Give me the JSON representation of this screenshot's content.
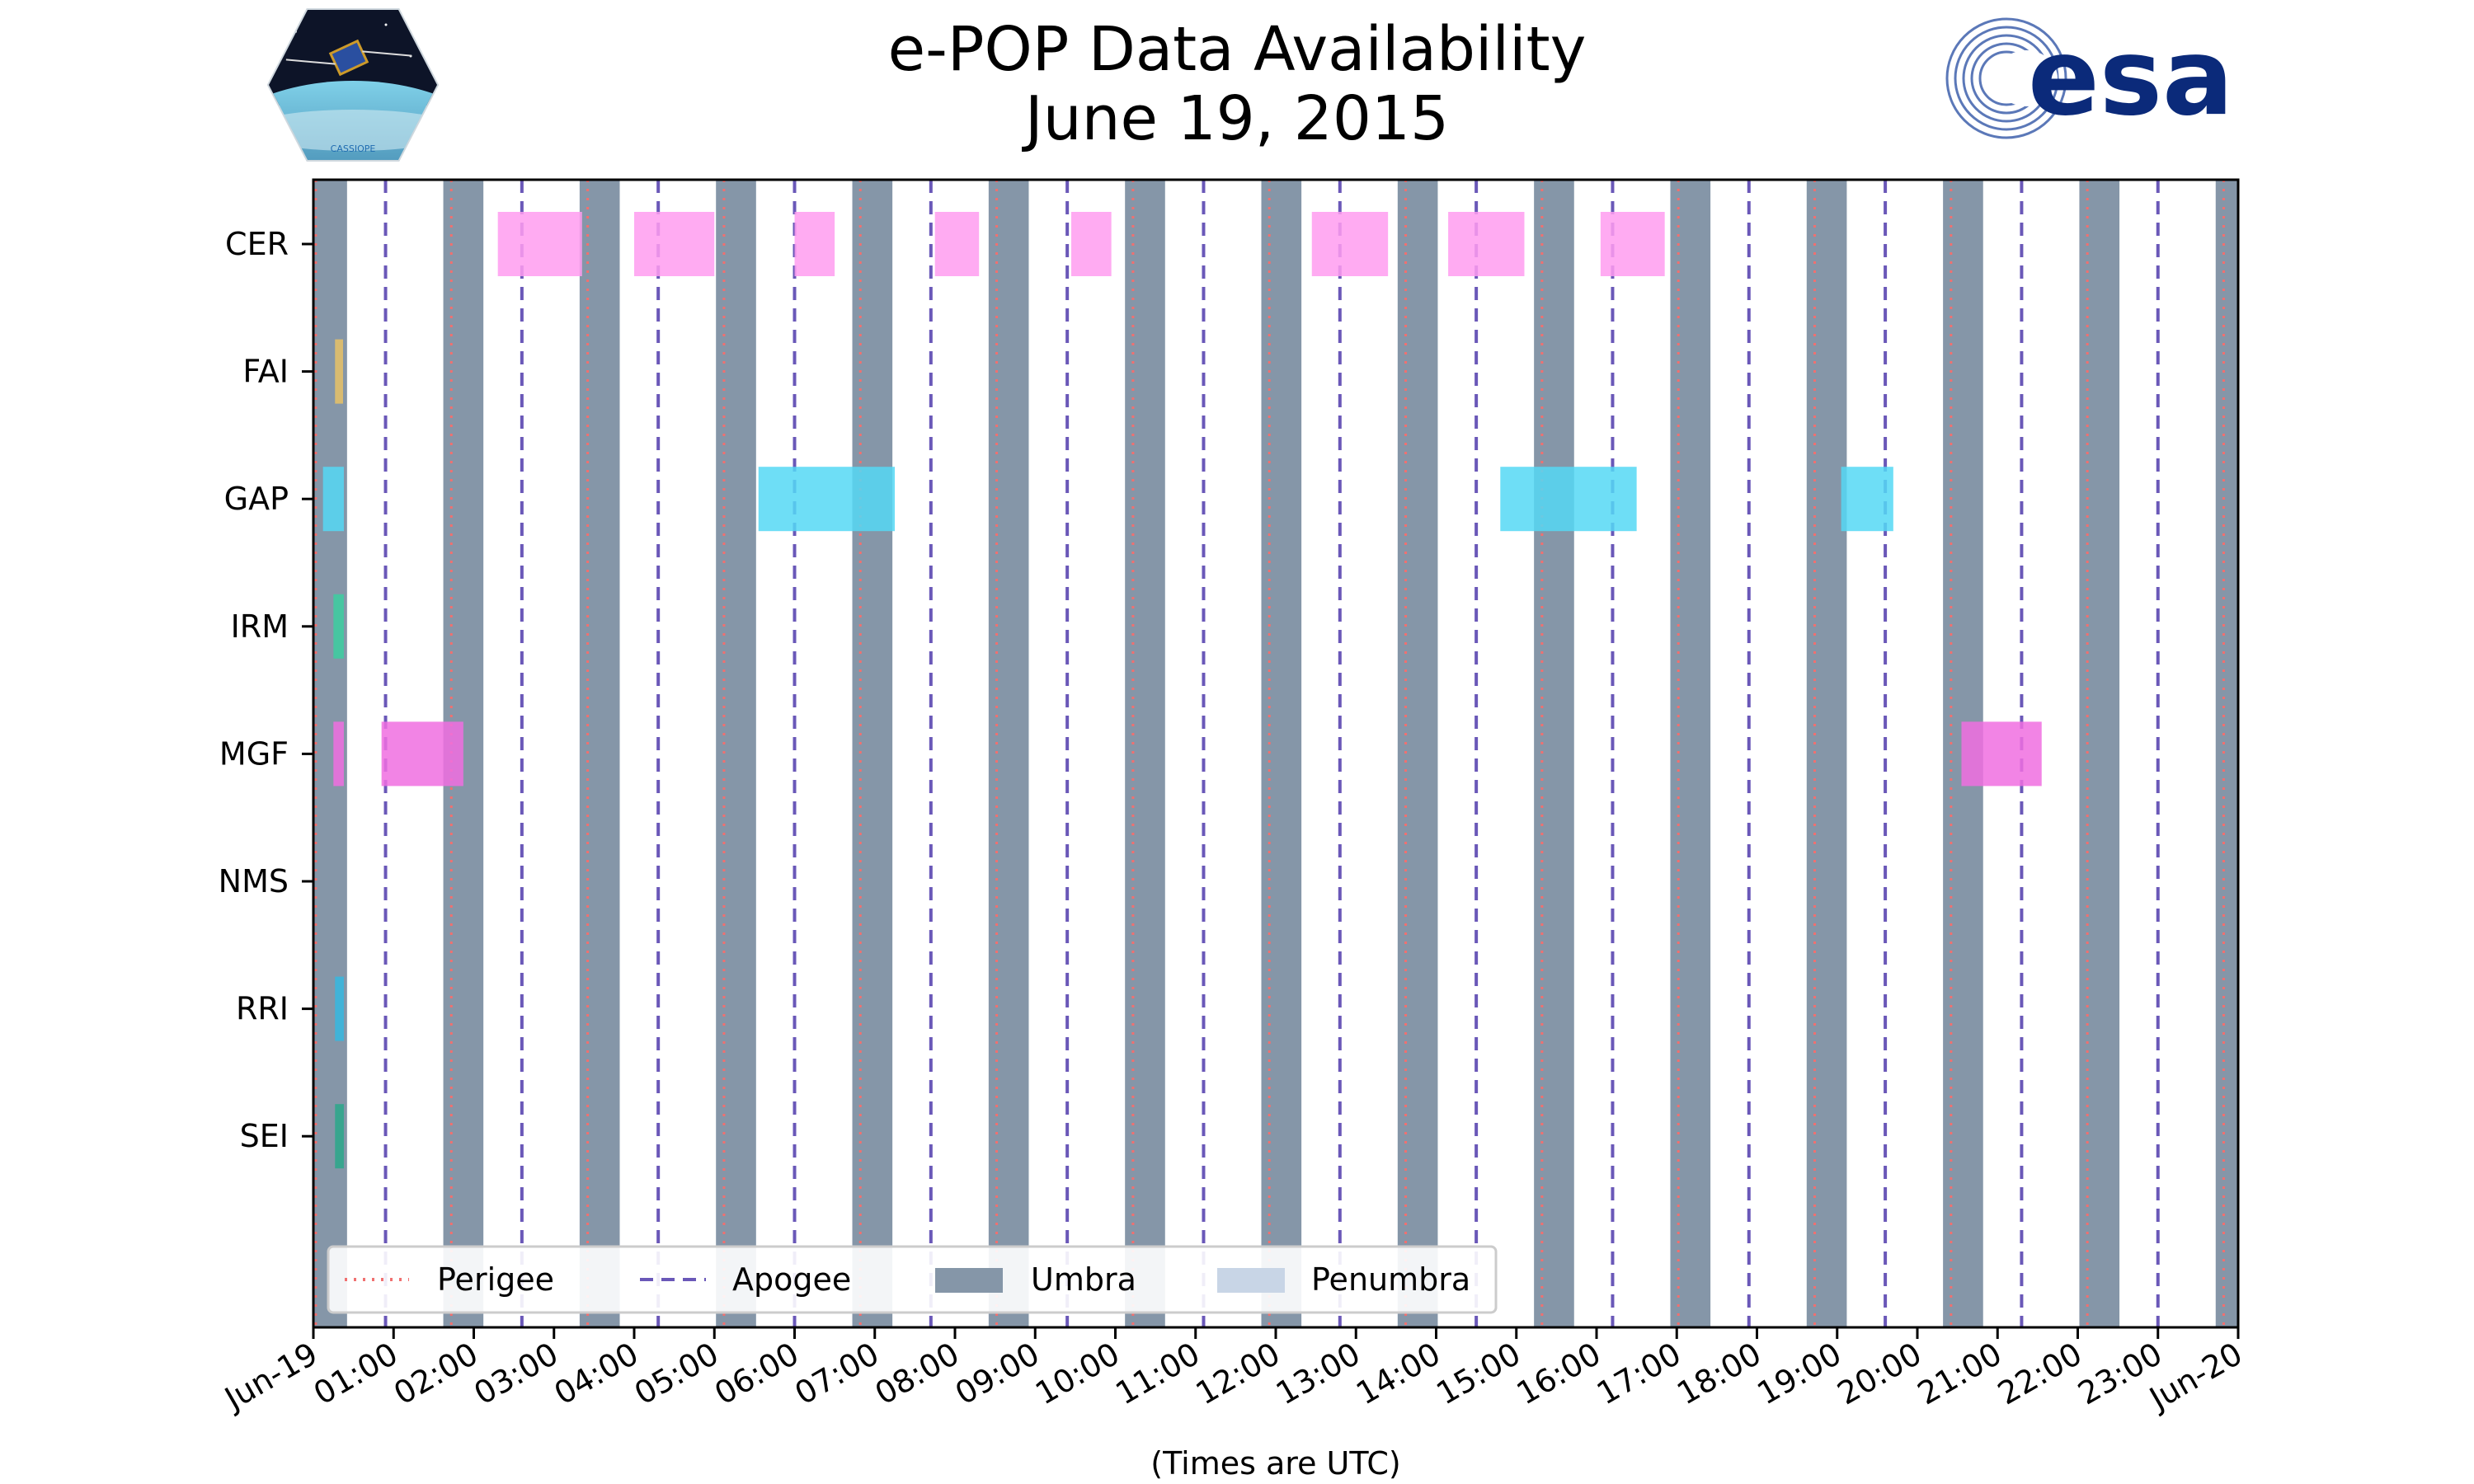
{
  "title": {
    "line1": "e-POP Data Availability",
    "line2": "June 19, 2015"
  },
  "logos": {
    "left": {
      "name": "cassiope-mission-logo",
      "text": "CASSIOPE"
    },
    "right": {
      "name": "esa-logo",
      "text": "esa"
    }
  },
  "colors": {
    "perigee": "#f07070",
    "apogee": "#6a58b8",
    "umbra": "#8596a8",
    "penumbra": "#c8d5e6",
    "CER": "#ff9cf0",
    "FAI": "#e8c266",
    "GAP": "#55d8f5",
    "IRM": "#3ccfa0",
    "MGF": "#f06ee0",
    "NMS": "#888888",
    "RRI": "#35b8e0",
    "SEI": "#2aa88a"
  },
  "chart_data": {
    "type": "timeline",
    "title": "e-POP Data Availability June 19, 2015",
    "xlabel": "(Times are UTC)",
    "ylabel": "",
    "xlim": [
      0,
      24
    ],
    "x_units": "hours UTC on 2015-06-19",
    "x_tick_labels": [
      "Jun-19",
      "01:00",
      "02:00",
      "03:00",
      "04:00",
      "05:00",
      "06:00",
      "07:00",
      "08:00",
      "09:00",
      "10:00",
      "11:00",
      "12:00",
      "13:00",
      "14:00",
      "15:00",
      "16:00",
      "17:00",
      "18:00",
      "19:00",
      "20:00",
      "21:00",
      "22:00",
      "23:00",
      "Jun-20"
    ],
    "instruments": [
      "CER",
      "FAI",
      "GAP",
      "IRM",
      "MGF",
      "NMS",
      "RRI",
      "SEI"
    ],
    "intervals": {
      "CER": [
        [
          2.3,
          3.35
        ],
        [
          4.0,
          5.0
        ],
        [
          6.0,
          6.5
        ],
        [
          7.75,
          8.3
        ],
        [
          9.45,
          9.95
        ],
        [
          12.45,
          13.4
        ],
        [
          14.15,
          15.1
        ],
        [
          16.05,
          16.85
        ]
      ],
      "FAI": [
        [
          0.27,
          0.37
        ]
      ],
      "GAP": [
        [
          0.12,
          0.38
        ],
        [
          5.55,
          7.25
        ],
        [
          14.8,
          16.5
        ],
        [
          19.05,
          19.7
        ]
      ],
      "IRM": [
        [
          0.25,
          0.38
        ]
      ],
      "MGF": [
        [
          0.25,
          0.38
        ],
        [
          0.85,
          1.87
        ],
        [
          20.55,
          21.55
        ]
      ],
      "NMS": [],
      "RRI": [
        [
          0.27,
          0.38
        ]
      ],
      "SEI": [
        [
          0.27,
          0.38
        ]
      ]
    },
    "umbra": [
      [
        0.0,
        0.42
      ],
      [
        1.62,
        2.12
      ],
      [
        3.32,
        3.82
      ],
      [
        5.02,
        5.52
      ],
      [
        6.72,
        7.22
      ],
      [
        8.42,
        8.92
      ],
      [
        10.12,
        10.62
      ],
      [
        11.82,
        12.32
      ],
      [
        13.52,
        14.02
      ],
      [
        15.22,
        15.72
      ],
      [
        16.92,
        17.42
      ],
      [
        18.62,
        19.12
      ],
      [
        20.32,
        20.82
      ],
      [
        22.02,
        22.52
      ],
      [
        23.72,
        24.0
      ]
    ],
    "penumbra": [],
    "perigee": [
      0.03,
      1.72,
      3.42,
      5.12,
      6.82,
      8.52,
      10.22,
      11.92,
      13.62,
      15.32,
      17.02,
      18.72,
      20.42,
      22.12,
      23.82
    ],
    "apogee": [
      0.9,
      2.6,
      4.3,
      6.0,
      7.7,
      9.4,
      11.1,
      12.8,
      14.5,
      16.2,
      17.9,
      19.6,
      21.3,
      23.0
    ],
    "legend": {
      "position": "lower-left",
      "entries": [
        "Perigee",
        "Apogee",
        "Umbra",
        "Penumbra"
      ]
    }
  }
}
